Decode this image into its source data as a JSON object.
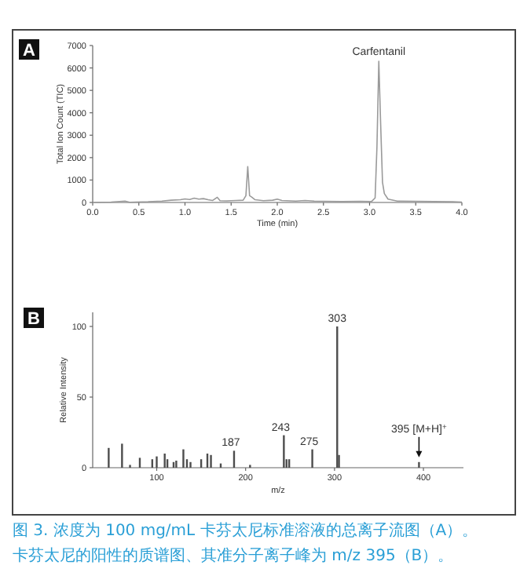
{
  "chart_data": [
    {
      "type": "line",
      "title": "A",
      "xlabel": "Time (min)",
      "ylabel": "Total Ion Count (TIC)",
      "color": "#9a9a9a",
      "marker": "none",
      "line_style": "solid",
      "grid": false,
      "x": [
        0,
        0.2,
        0.35,
        0.4,
        0.6,
        0.75,
        0.85,
        0.95,
        1.0,
        1.05,
        1.1,
        1.15,
        1.2,
        1.25,
        1.3,
        1.35,
        1.38,
        1.45,
        1.55,
        1.63,
        1.66,
        1.68,
        1.7,
        1.72,
        1.76,
        1.85,
        1.95,
        2.0,
        2.05,
        2.2,
        2.3,
        2.4,
        2.5,
        2.7,
        2.9,
        3.02,
        3.06,
        3.08,
        3.1,
        3.12,
        3.14,
        3.16,
        3.2,
        3.3,
        3.5,
        3.7,
        3.9,
        4.0
      ],
      "values": [
        0,
        20,
        60,
        10,
        30,
        60,
        100,
        120,
        160,
        130,
        190,
        150,
        170,
        120,
        90,
        230,
        80,
        70,
        90,
        100,
        300,
        1600,
        300,
        250,
        120,
        80,
        100,
        150,
        90,
        60,
        90,
        60,
        50,
        40,
        50,
        40,
        200,
        2500,
        6300,
        3500,
        900,
        400,
        150,
        60,
        50,
        40,
        30,
        20
      ],
      "xlim": [
        0,
        4
      ],
      "ylim": [
        0,
        7000
      ],
      "xticks": [
        {
          "value": 0,
          "label": "0.0"
        },
        {
          "value": 0.5,
          "label": "0.5"
        },
        {
          "value": 1,
          "label": "1.0"
        },
        {
          "value": 1.5,
          "label": "1.5"
        },
        {
          "value": 2,
          "label": "2.0"
        },
        {
          "value": 2.5,
          "label": "2.5"
        },
        {
          "value": 3,
          "label": "3.0"
        },
        {
          "value": 3.5,
          "label": "3.5"
        },
        {
          "value": 4,
          "label": "4.0"
        }
      ],
      "yticks": [
        0,
        1000,
        2000,
        3000,
        4000,
        5000,
        6000,
        7000
      ],
      "annotations": [
        {
          "text": "Carfentanil",
          "x": 3.1,
          "y": 6300
        }
      ]
    },
    {
      "type": "bar",
      "title": "B",
      "xlabel": "m/z",
      "ylabel": "Relative Intensity",
      "color": "#4d4d4d",
      "grid": false,
      "x": [
        46,
        61,
        70,
        81,
        95,
        100,
        109,
        112,
        119,
        122,
        130,
        134,
        138,
        150,
        157,
        161,
        172,
        187,
        205,
        243,
        246,
        249,
        275,
        303,
        305,
        395
      ],
      "values": [
        14,
        17,
        2,
        7,
        6,
        8,
        10,
        6,
        4,
        5,
        13,
        6,
        4,
        6,
        10,
        9,
        3,
        12,
        2,
        23,
        6,
        6,
        13,
        100,
        9,
        4
      ],
      "xlim": [
        28,
        445
      ],
      "ylim": [
        0,
        110
      ],
      "xticks": [
        100,
        200,
        300,
        400
      ],
      "yticks": [
        0,
        50,
        100
      ],
      "annotations": [
        {
          "text": "187",
          "x": 187,
          "y": 12
        },
        {
          "text": "243",
          "x": 243,
          "y": 23
        },
        {
          "text": "275",
          "x": 275,
          "y": 13
        },
        {
          "text": "303",
          "x": 303,
          "y": 100
        },
        {
          "text": "395 [M+H]$^{+}$",
          "x": 395,
          "y": 4
        },
        "图 3. 浓度为 100 mg/mL 卡芬太尼标准溶液的总离子流图（A）。",
        "卡芬太尼的阳性的质谱图、其准分子离子峰为 m/z 395（B）。"
      ]
    }
  ]
}
